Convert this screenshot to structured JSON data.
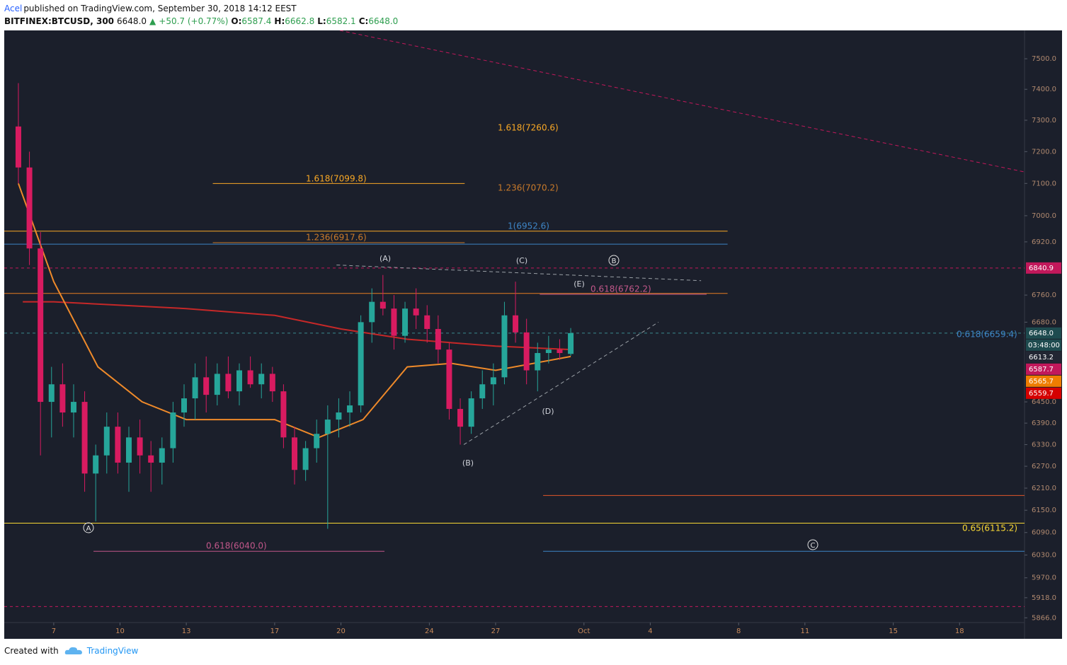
{
  "header": {
    "author": "Acel",
    "published": "published on TradingView.com, September 30, 2018 14:12 EEST",
    "symbol": "BITFINEX:BTCUSD, 300",
    "last": "6648.0",
    "arrow": "▲",
    "change": "+50.7 (+0.77%)",
    "o_label": "O:",
    "open": "6587.4",
    "h_label": "H:",
    "high": "6662.8",
    "l_label": "L:",
    "low": "6582.1",
    "c_label": "C:",
    "close": "6648.0"
  },
  "chart_data": {
    "type": "candlestick",
    "log_scale": true,
    "grid": false,
    "up_color": "#26a69a",
    "down_color": "#d81b60",
    "xlim": [
      4.76,
      50.94
    ],
    "ylim": [
      5812,
      7594
    ],
    "xticks": [
      7,
      10,
      13,
      17,
      20,
      24,
      27,
      {
        "value": 31,
        "label": "Oct"
      },
      {
        "value": 34,
        "label": "4"
      },
      {
        "value": 38,
        "label": "8"
      },
      {
        "value": 41,
        "label": "11"
      },
      {
        "value": 45,
        "label": "15"
      },
      {
        "value": 48,
        "label": "18"
      }
    ],
    "yticks": [
      {
        "value": 7500,
        "label": "7500.0"
      },
      {
        "value": 7400,
        "label": "7400.0"
      },
      {
        "value": 7300,
        "label": "7300.0"
      },
      {
        "value": 7200,
        "label": "7200.0"
      },
      {
        "value": 7100,
        "label": "7100.0"
      },
      {
        "value": 7000,
        "label": "7000.0"
      },
      {
        "value": 6920,
        "label": "6920.0"
      },
      {
        "value": 6760,
        "label": "6760.0"
      },
      {
        "value": 6680,
        "label": "6680.0"
      },
      {
        "value": 6450,
        "label": "6450.0"
      },
      {
        "value": 6390,
        "label": "6390.0"
      },
      {
        "value": 6330,
        "label": "6330.0"
      },
      {
        "value": 6270,
        "label": "6270.0"
      },
      {
        "value": 6210,
        "label": "6210.0"
      },
      {
        "value": 6150,
        "label": "6150.0"
      },
      {
        "value": 6090,
        "label": "6090.0"
      },
      {
        "value": 6030,
        "label": "6030.0"
      },
      {
        "value": 5970,
        "label": "5970.0"
      },
      {
        "value": 5918,
        "label": "5918.0"
      },
      {
        "value": 5866,
        "label": "5866.0"
      }
    ],
    "candles": {
      "x": [
        5.4,
        5.9,
        6.4,
        6.9,
        7.4,
        7.9,
        8.4,
        8.9,
        9.4,
        9.9,
        10.4,
        10.9,
        11.4,
        11.9,
        12.4,
        12.9,
        13.4,
        13.9,
        14.4,
        14.9,
        15.4,
        15.9,
        16.4,
        16.9,
        17.4,
        17.9,
        18.4,
        18.9,
        19.4,
        19.9,
        20.4,
        20.9,
        21.4,
        21.9,
        22.4,
        22.9,
        23.4,
        23.9,
        24.4,
        24.9,
        25.4,
        25.9,
        26.4,
        26.9,
        27.4,
        27.9,
        28.4,
        28.9,
        29.4,
        29.9,
        30.4
      ],
      "open": [
        7280,
        7150,
        6900,
        6450,
        6500,
        6420,
        6450,
        6250,
        6300,
        6380,
        6280,
        6350,
        6300,
        6280,
        6320,
        6420,
        6460,
        6520,
        6470,
        6530,
        6480,
        6540,
        6500,
        6530,
        6480,
        6350,
        6260,
        6320,
        6360,
        6400,
        6420,
        6440,
        6680,
        6740,
        6720,
        6640,
        6720,
        6700,
        6660,
        6600,
        6430,
        6380,
        6460,
        6500,
        6520,
        6700,
        6650,
        6540,
        6590,
        6600,
        6587.4
      ],
      "high": [
        7420,
        7200,
        6950,
        6550,
        6560,
        6500,
        6480,
        6330,
        6420,
        6420,
        6380,
        6400,
        6340,
        6350,
        6450,
        6500,
        6560,
        6580,
        6560,
        6580,
        6560,
        6580,
        6560,
        6550,
        6500,
        6380,
        6340,
        6400,
        6440,
        6460,
        6480,
        6700,
        6780,
        6820,
        6760,
        6740,
        6780,
        6730,
        6700,
        6620,
        6460,
        6480,
        6540,
        6560,
        6740,
        6800,
        6690,
        6620,
        6640,
        6630,
        6662.8
      ],
      "low": [
        7100,
        6850,
        6300,
        6350,
        6380,
        6350,
        6200,
        6120,
        6250,
        6250,
        6200,
        6250,
        6200,
        6220,
        6280,
        6380,
        6400,
        6420,
        6440,
        6460,
        6440,
        6490,
        6460,
        6450,
        6320,
        6220,
        6230,
        6280,
        6100,
        6350,
        6380,
        6420,
        6620,
        6700,
        6600,
        6620,
        6660,
        6620,
        6560,
        6400,
        6330,
        6360,
        6430,
        6440,
        6500,
        6620,
        6500,
        6480,
        6560,
        6570,
        6582.1
      ],
      "close": [
        7150,
        6900,
        6450,
        6500,
        6420,
        6450,
        6250,
        6300,
        6380,
        6280,
        6350,
        6300,
        6280,
        6320,
        6420,
        6460,
        6520,
        6470,
        6530,
        6480,
        6540,
        6500,
        6530,
        6480,
        6350,
        6260,
        6320,
        6360,
        6400,
        6420,
        6440,
        6680,
        6740,
        6720,
        6640,
        6720,
        6700,
        6660,
        6600,
        6430,
        6380,
        6460,
        6500,
        6520,
        6700,
        6650,
        6540,
        6590,
        6600,
        6590,
        6648.0
      ]
    },
    "lines": [
      {
        "color": "#c62828",
        "x": [
          5.6,
          7,
          13,
          17,
          20,
          23,
          27,
          30.4
        ],
        "values": [
          6740,
          6740,
          6720,
          6700,
          6660,
          6630,
          6610,
          6600
        ]
      },
      {
        "color": "#ef8a2a",
        "x": [
          5.4,
          7,
          9,
          11,
          13,
          15,
          17,
          19,
          21,
          23,
          25,
          27,
          30.4
        ],
        "values": [
          7100,
          6800,
          6550,
          6450,
          6400,
          6400,
          6400,
          6350,
          6400,
          6550,
          6560,
          6540,
          6580
        ]
      }
    ],
    "levels": [
      {
        "value": 6952.6,
        "x": [
          4.76,
          37.5
        ],
        "color": "#f9a825",
        "dashed": false
      },
      {
        "value": 6913,
        "x": [
          4.76,
          37.5
        ],
        "color": "#3d85c6",
        "dashed": false
      },
      {
        "value": 6840.9,
        "x": [
          4.76,
          50.94
        ],
        "color": "#c2185b",
        "dashed": true
      },
      {
        "value": 6765,
        "x": [
          4.76,
          37.5
        ],
        "color": "#e67e22",
        "dashed": false
      },
      {
        "value": 6648,
        "x": [
          4.76,
          50.94
        ],
        "color": "#3a8a8f",
        "dashed": true
      },
      {
        "value": 6190,
        "x": [
          29.15,
          50.94
        ],
        "color": "#e0562a",
        "dashed": false
      },
      {
        "value": 6115.2,
        "x": [
          4.76,
          50.94
        ],
        "color": "#f9d835",
        "dashed": false
      },
      {
        "value": 6040,
        "x": [
          29.15,
          50.94
        ],
        "color": "#3d85c6",
        "dashed": false
      },
      {
        "value": 5895,
        "x": [
          4.76,
          50.94
        ],
        "color": "#c2185b",
        "dashed": true
      },
      {
        "value": 7099.8,
        "x": [
          14.2,
          25.6
        ],
        "color": "#f9a825",
        "dashed": false
      },
      {
        "value": 6917.6,
        "x": [
          14.2,
          25.6
        ],
        "color": "#c97a2a",
        "dashed": false
      },
      {
        "value": 6762.2,
        "x": [
          29,
          36.55
        ],
        "color": "#c2578a",
        "dashed": false
      },
      {
        "value": 6040.0,
        "x": [
          8.8,
          21.97
        ],
        "color": "#c2578a",
        "dashed": false
      }
    ],
    "trendlines": [
      {
        "x": [
          19.95,
          50.94
        ],
        "y": [
          7594,
          7136
        ],
        "color": "#c2185b",
        "dashed": true
      },
      {
        "x": [
          19.8,
          36.3
        ],
        "y": [
          6850,
          6803
        ],
        "color": "#9aa0a6",
        "dashed": true
      },
      {
        "x": [
          25.56,
          34.37
        ],
        "y": [
          6330,
          6680
        ],
        "color": "#9aa0a6",
        "dashed": true
      }
    ],
    "fib_labels": [
      {
        "label": "1.618(7260.6)",
        "color": "#f9a825"
      },
      {
        "label": "1.618(7099.8)",
        "color": "#f9a825"
      },
      {
        "label": "1.236(7070.2)",
        "color": "#c97a2a"
      },
      {
        "label": "1.236(6917.6)",
        "color": "#c97a2a"
      },
      {
        "label": "1(6952.6)",
        "color": "#3d85c6"
      },
      {
        "label": "0.618(6762.2)",
        "color": "#c2578a"
      },
      {
        "label": "0.618(6659.4)",
        "color": "#3d85c6"
      },
      {
        "label": "0.65(6115.2)",
        "color": "#f9d835"
      },
      {
        "label": "0.618(6040.0)",
        "color": "#c2578a"
      }
    ],
    "wave_labels": [
      "(A)",
      "(C)",
      "(E)",
      "(B)",
      "(D)"
    ],
    "circled_labels": [
      "A",
      "B",
      "C"
    ],
    "price_labels": [
      {
        "value": 6840.9,
        "label": "6840.9",
        "color": "#c2185b"
      },
      {
        "value": 6648,
        "label": "6648.0",
        "color": "#1e4b4f",
        "countdown": "03:48:00"
      },
      {
        "value": 6613.2,
        "label": "6613.2",
        "color": "#222633"
      },
      {
        "value": 6587.7,
        "label": "6587.7",
        "color": "#c2185b"
      },
      {
        "value": 6565.7,
        "label": "6565.7",
        "color": "#ef7d00"
      },
      {
        "value": 6559.7,
        "label": "6559.7",
        "color": "#d50000"
      }
    ]
  },
  "footer": {
    "created": "Created with",
    "brand": "TradingView"
  }
}
